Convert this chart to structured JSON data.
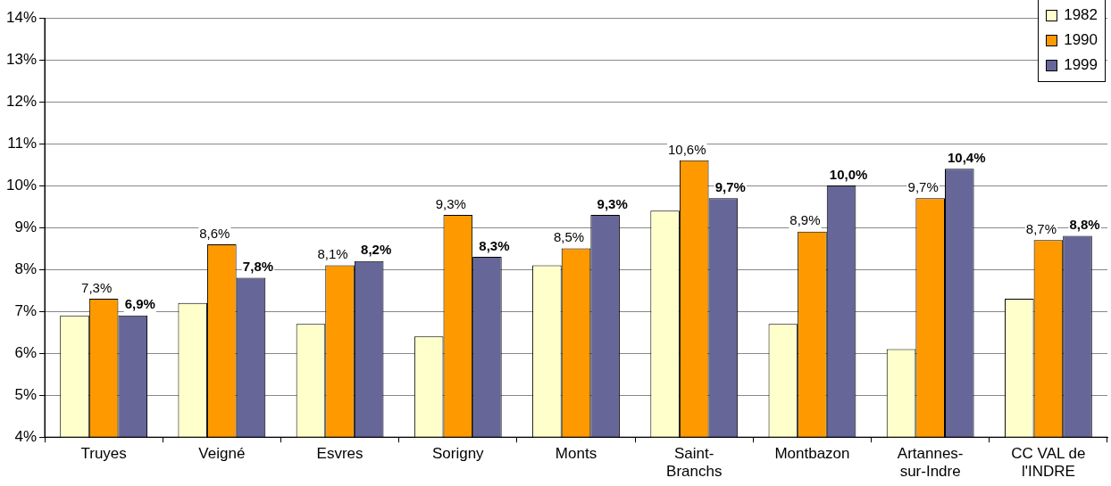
{
  "chart_data": {
    "type": "bar",
    "categories": [
      "Truyes",
      "Veigné",
      "Esvres",
      "Sorigny",
      "Monts",
      "Saint-Branchs",
      "Montbazon",
      "Artannes-sur-Indre",
      "CC VAL de l'INDRE"
    ],
    "series": [
      {
        "name": "1982",
        "color": "#ffffcc",
        "values": [
          6.9,
          7.2,
          6.7,
          6.4,
          8.1,
          9.4,
          6.7,
          6.1,
          7.3
        ]
      },
      {
        "name": "1990",
        "color": "#ff9900",
        "values": [
          7.3,
          8.6,
          8.1,
          9.3,
          8.5,
          10.6,
          8.9,
          9.7,
          8.7
        ],
        "value_labels": [
          "7,3%",
          "8,6%",
          "8,1%",
          "9,3%",
          "8,5%",
          "10,6%",
          "8,9%",
          "9,7%",
          "8,7%"
        ]
      },
      {
        "name": "1999",
        "color": "#666699",
        "values": [
          6.9,
          7.8,
          8.2,
          8.3,
          9.3,
          9.7,
          10.0,
          10.4,
          8.8
        ],
        "value_labels": [
          "6,9%",
          "7,8%",
          "8,2%",
          "8,3%",
          "9,3%",
          "9,7%",
          "10,0%",
          "10,4%",
          "8,8%"
        ]
      }
    ],
    "ylim": [
      4,
      14
    ],
    "yticks": [
      {
        "value": 4,
        "label": "4%"
      },
      {
        "value": 5,
        "label": "5%"
      },
      {
        "value": 6,
        "label": "6%"
      },
      {
        "value": 7,
        "label": "7%"
      },
      {
        "value": 8,
        "label": "8%"
      },
      {
        "value": 9,
        "label": "9%"
      },
      {
        "value": 10,
        "label": "10%"
      },
      {
        "value": 11,
        "label": "11%"
      },
      {
        "value": 12,
        "label": "12%"
      },
      {
        "value": 13,
        "label": "13%"
      },
      {
        "value": 14,
        "label": "14%"
      }
    ],
    "grid": "y",
    "legend": "top right"
  }
}
